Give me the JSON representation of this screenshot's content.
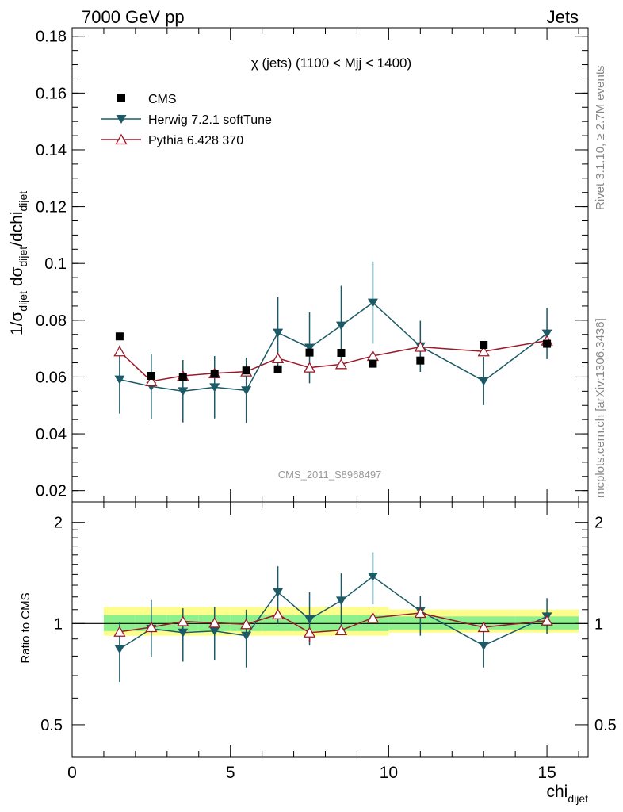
{
  "header": {
    "left": "7000 GeV pp",
    "right": "Jets"
  },
  "side_text": {
    "top": "Rivet 3.1.10, ≥ 2.7M events",
    "bottom": "mcplots.cern.ch [arXiv:1306.3436]"
  },
  "watermark": "CMS_2011_S8968497",
  "colors": {
    "cms": "#000000",
    "herwig": "#1b5a66",
    "pythia": "#9a1a2a",
    "band_inner": "#8cf08c",
    "band_outer": "#fdfd8c"
  },
  "chart_data": {
    "type": "scatter",
    "title": "χ (jets) (1100 < Mjj < 1400)",
    "ylabel_main": "1/σdijet dσdijet/dchidijet",
    "ylabel_ratio": "Ratio to CMS",
    "xlabel": "chidijet",
    "xlim": [
      0,
      16.3
    ],
    "ylim_main": [
      0.016,
      0.183
    ],
    "ylim_ratio": [
      0.4,
      2.3
    ],
    "x_ticks": [
      0,
      5,
      10,
      15
    ],
    "y_ticks_main": [
      0.02,
      0.04,
      0.06,
      0.08,
      0.1,
      0.12,
      0.14,
      0.16,
      0.18
    ],
    "y_tick_labels_main": [
      "0.02",
      "0.04",
      "0.06",
      "0.08",
      "0.1",
      "0.12",
      "0.14",
      "0.16",
      "0.18"
    ],
    "y_ticks_ratio": [
      0.5,
      1,
      2
    ],
    "y_tick_labels_ratio": [
      "0.5",
      "1",
      "2"
    ],
    "bins": [
      [
        1,
        2
      ],
      [
        2,
        3
      ],
      [
        3,
        4
      ],
      [
        4,
        5
      ],
      [
        5,
        6
      ],
      [
        6,
        7
      ],
      [
        7,
        8
      ],
      [
        8,
        9
      ],
      [
        9,
        10
      ],
      [
        10,
        12
      ],
      [
        12,
        14
      ],
      [
        14,
        16
      ]
    ],
    "x": [
      1.5,
      2.5,
      3.5,
      4.5,
      5.5,
      6.5,
      7.5,
      8.5,
      9.5,
      11,
      13,
      15
    ],
    "series": [
      {
        "name": "CMS",
        "key": "cms",
        "marker": "square",
        "values": [
          0.0743,
          0.0604,
          0.0601,
          0.0612,
          0.0623,
          0.0627,
          0.0686,
          0.0685,
          0.0647,
          0.0658,
          0.0713,
          0.0717
        ],
        "errors": [
          0.001,
          0.001,
          0.001,
          0.001,
          0.001,
          0.001,
          0.001,
          0.001,
          0.001,
          0.001,
          0.001,
          0.001
        ]
      },
      {
        "name": "Herwig 7.2.1 softTune",
        "key": "herwig",
        "marker": "triangle-down",
        "values": [
          0.0591,
          0.0567,
          0.055,
          0.0564,
          0.0553,
          0.0756,
          0.0703,
          0.0781,
          0.0862,
          0.0708,
          0.0586,
          0.0753
        ],
        "errors": [
          0.012,
          0.0115,
          0.011,
          0.011,
          0.0115,
          0.0125,
          0.0125,
          0.014,
          0.0145,
          0.009,
          0.0085,
          0.009
        ]
      },
      {
        "name": "Pythia 6.428 370",
        "key": "pythia",
        "marker": "triangle-up",
        "values": [
          0.069,
          0.0585,
          0.0604,
          0.0613,
          0.0619,
          0.0666,
          0.0633,
          0.0645,
          0.0674,
          0.0706,
          0.069,
          0.0728
        ],
        "errors": [
          0.0015,
          0.001,
          0.0008,
          0.0008,
          0.0008,
          0.001,
          0.0008,
          0.0008,
          0.0008,
          0.0008,
          0.0008,
          0.0008
        ]
      }
    ],
    "ratio": {
      "band_inner": [
        [
          0.95,
          1.06
        ],
        [
          0.95,
          1.06
        ],
        [
          0.95,
          1.06
        ],
        [
          0.95,
          1.06
        ],
        [
          0.95,
          1.06
        ],
        [
          0.95,
          1.06
        ],
        [
          0.95,
          1.06
        ],
        [
          0.95,
          1.06
        ],
        [
          0.95,
          1.06
        ],
        [
          0.96,
          1.05
        ],
        [
          0.96,
          1.05
        ],
        [
          0.96,
          1.05
        ]
      ],
      "band_outer": [
        [
          0.92,
          1.12
        ],
        [
          0.92,
          1.12
        ],
        [
          0.92,
          1.12
        ],
        [
          0.92,
          1.12
        ],
        [
          0.92,
          1.12
        ],
        [
          0.92,
          1.12
        ],
        [
          0.92,
          1.12
        ],
        [
          0.92,
          1.12
        ],
        [
          0.92,
          1.12
        ],
        [
          0.94,
          1.1
        ],
        [
          0.94,
          1.1
        ],
        [
          0.94,
          1.1
        ]
      ],
      "herwig": [
        0.84,
        0.965,
        0.94,
        0.95,
        0.92,
        1.24,
        1.03,
        1.17,
        1.38,
        1.09,
        0.86,
        1.05
      ],
      "herwig_err": [
        [
          0.17,
          0.17
        ],
        [
          0.17,
          0.21
        ],
        [
          0.17,
          0.17
        ],
        [
          0.17,
          0.17
        ],
        [
          0.18,
          0.18
        ],
        [
          0.24,
          0.24
        ],
        [
          0.17,
          0.21
        ],
        [
          0.24,
          0.24
        ],
        [
          0.24,
          0.25
        ],
        [
          0.17,
          0.12
        ],
        [
          0.12,
          0.12
        ],
        [
          0.12,
          0.14
        ]
      ],
      "pythia": [
        0.945,
        0.975,
        1.015,
        1.005,
        0.995,
        1.065,
        0.94,
        0.955,
        1.04,
        1.075,
        0.975,
        1.02
      ],
      "pythia_err": [
        [
          0.01,
          0.01
        ],
        [
          0.01,
          0.01
        ],
        [
          0.01,
          0.01
        ],
        [
          0.01,
          0.01
        ],
        [
          0.01,
          0.01
        ],
        [
          0.01,
          0.01
        ],
        [
          0.06,
          0.02
        ],
        [
          0.01,
          0.01
        ],
        [
          0.01,
          0.01
        ],
        [
          0.01,
          0.01
        ],
        [
          0.01,
          0.01
        ],
        [
          0.01,
          0.01
        ]
      ]
    }
  }
}
